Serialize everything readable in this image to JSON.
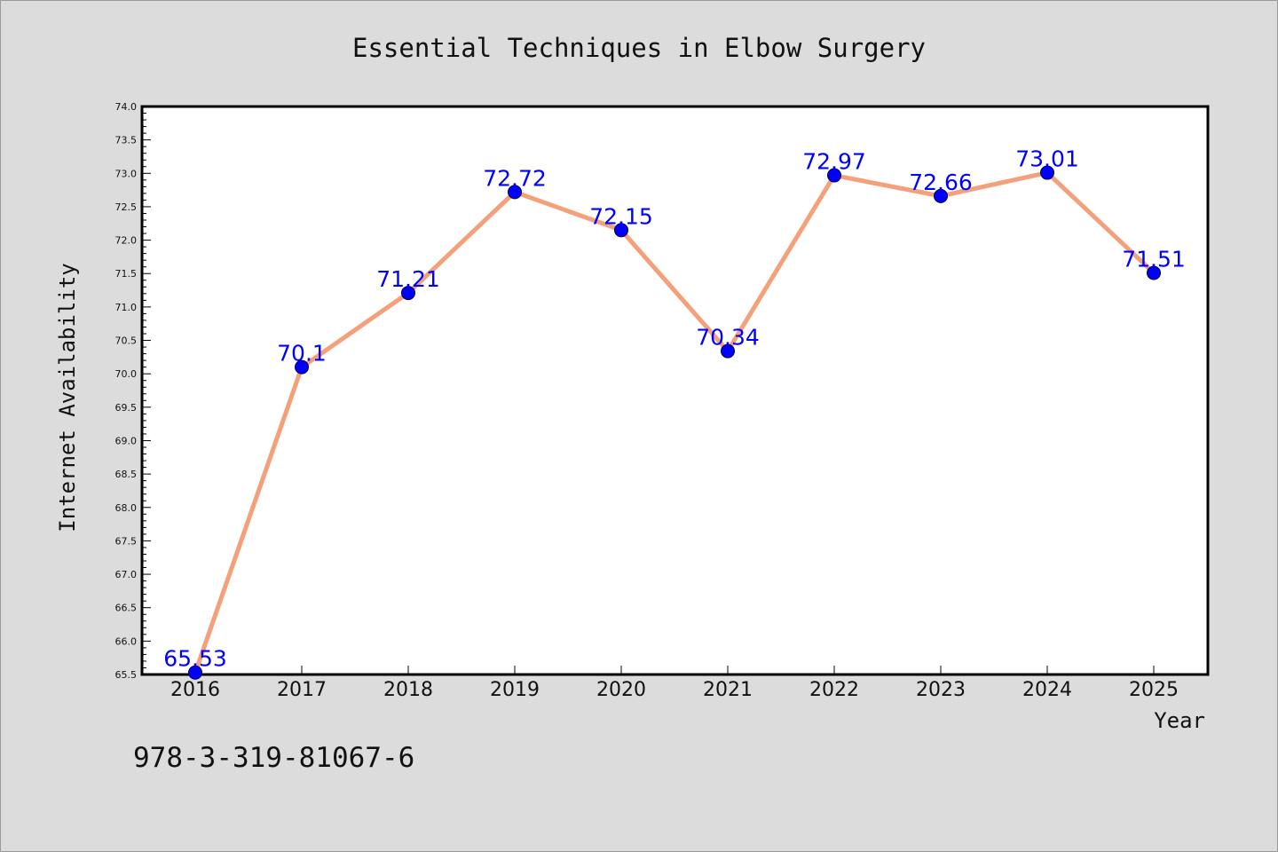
{
  "isbn": "978-3-319-81067-6",
  "colors": {
    "background": "#dcdcdc",
    "plot_area": "#ffffff",
    "line": "#f4a07a",
    "marker": "#0000ff",
    "data_label": "#0000ff"
  },
  "chart_data": {
    "type": "line",
    "title": "Essential Techniques in Elbow Surgery",
    "xlabel": "Year",
    "ylabel": "Internet Availability",
    "categories": [
      "2016",
      "2017",
      "2018",
      "2019",
      "2020",
      "2021",
      "2022",
      "2023",
      "2024",
      "2025"
    ],
    "values": [
      65.53,
      70.1,
      71.21,
      72.72,
      72.15,
      70.34,
      72.97,
      72.66,
      73.01,
      71.51
    ],
    "data_labels": [
      "65.53",
      "70.1",
      "71.21",
      "72.72",
      "72.15",
      "70.34",
      "72.97",
      "72.66",
      "73.01",
      "71.51"
    ],
    "ylim": [
      65.5,
      74.0
    ],
    "y_ticks": [
      "65.5",
      "66.0",
      "66.5",
      "67.0",
      "67.5",
      "68.0",
      "68.5",
      "69.0",
      "69.5",
      "70.0",
      "70.5",
      "71.0",
      "71.5",
      "72.0",
      "72.5",
      "73.0",
      "73.5",
      "74.0"
    ],
    "grid": false,
    "legend": "none",
    "marker": "circle"
  }
}
